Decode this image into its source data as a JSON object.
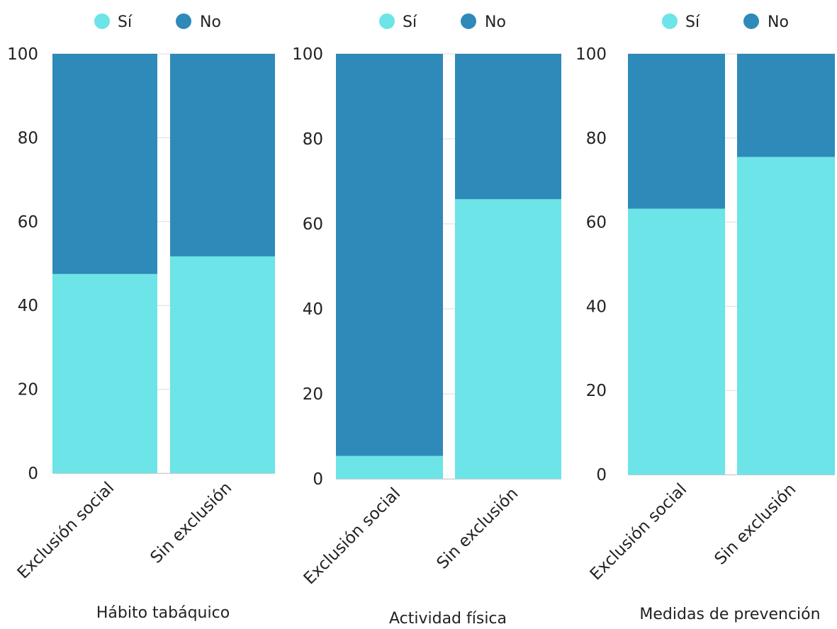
{
  "colors": {
    "si": "#6ce4e8",
    "no": "#2e8ab8",
    "grid": "#dddddd"
  },
  "chart_data": [
    {
      "type": "bar",
      "stacked": true,
      "categories": [
        "Exclusión social",
        "Sin exclusión"
      ],
      "series": [
        {
          "name": "Sí",
          "values": [
            47.5,
            51.7
          ]
        },
        {
          "name": "No",
          "values": [
            52.5,
            48.3
          ]
        }
      ],
      "xlabel": "Hábito tabáquico",
      "ylim": [
        0,
        100
      ],
      "yticks": [
        "0",
        "20",
        "40",
        "60",
        "80",
        "100"
      ],
      "legend": "top"
    },
    {
      "type": "bar",
      "stacked": true,
      "categories": [
        "Exclusión social",
        "Sin exclusión"
      ],
      "series": [
        {
          "name": "Sí",
          "values": [
            5.4,
            65.8
          ]
        },
        {
          "name": "No",
          "values": [
            94.6,
            34.2
          ]
        }
      ],
      "xlabel": "Actividad física",
      "ylim": [
        0,
        100
      ],
      "yticks": [
        "0",
        "20",
        "40",
        "60",
        "80",
        "100"
      ],
      "legend": "top"
    },
    {
      "type": "bar",
      "stacked": true,
      "categories": [
        "Exclusión social",
        "Sin exclusión"
      ],
      "series": [
        {
          "name": "Sí",
          "values": [
            63.2,
            75.5
          ]
        },
        {
          "name": "No",
          "values": [
            36.8,
            24.5
          ]
        }
      ],
      "xlabel": "Medidas de prevención",
      "ylim": [
        0,
        100
      ],
      "yticks": [
        "0",
        "20",
        "40",
        "60",
        "80",
        "100"
      ],
      "legend": "top"
    }
  ]
}
